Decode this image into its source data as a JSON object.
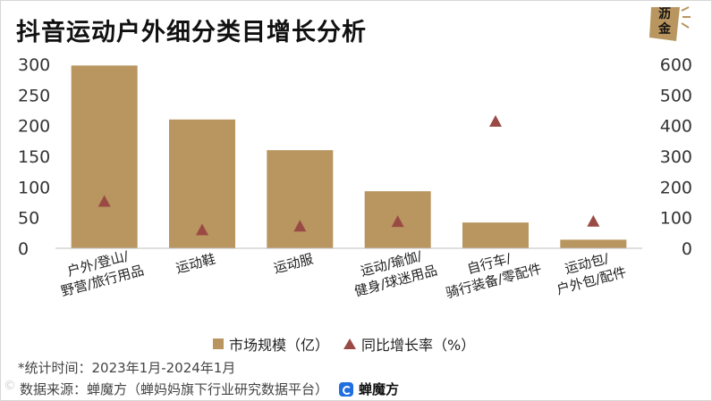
{
  "title": "抖音运动户外细分类目增长分析",
  "logo_text": "沥金",
  "legend": {
    "bar_label": "市场规模（亿）",
    "marker_label": "同比增长率（%）"
  },
  "note": "*统计时间：2023年1月-2024年1月",
  "source": {
    "label": "数据来源：蝉魔方（蝉妈妈旗下行业研究数据平台）",
    "brand": "蝉魔方"
  },
  "watermark": "©",
  "colors": {
    "bar": "#b9955f",
    "marker": "#9a4a45",
    "axis_text": "#333333"
  },
  "chart_data": {
    "type": "bar",
    "categories": [
      [
        "户外/登山/",
        "野营/旅行用品"
      ],
      [
        "运动鞋"
      ],
      [
        "运动服"
      ],
      [
        "运动/瑜伽/",
        "健身/球迷用品"
      ],
      [
        "自行车/",
        "骑行装备/零配件"
      ],
      [
        "运动包/",
        "户外包/配件"
      ]
    ],
    "series": [
      {
        "name": "市场规模（亿）",
        "type": "bar",
        "axis": "left",
        "values": [
          298,
          210,
          160,
          93,
          42,
          14
        ]
      },
      {
        "name": "同比增长率（%）",
        "type": "scatter",
        "marker": "triangle",
        "axis": "right",
        "values": [
          153,
          60,
          72,
          87,
          414,
          88
        ]
      }
    ],
    "y_left": {
      "min": 0,
      "max": 300,
      "ticks": [
        0,
        50,
        100,
        150,
        200,
        250,
        300
      ]
    },
    "y_right": {
      "min": 0,
      "max": 600,
      "ticks": [
        0,
        100,
        200,
        300,
        400,
        500,
        600
      ]
    },
    "grid": false,
    "legend_position": "bottom"
  }
}
